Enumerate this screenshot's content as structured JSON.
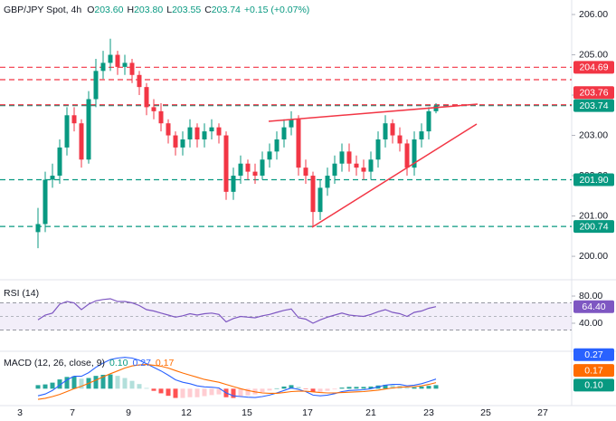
{
  "chart_data": [
    {
      "type": "candlestick",
      "title": "GBP/JPY Spot, 4h",
      "legend": [
        {
          "label": "O",
          "value": "203.60"
        },
        {
          "label": "H",
          "value": "203.80"
        },
        {
          "label": "L",
          "value": "203.55"
        },
        {
          "label": "C",
          "value": "203.74"
        }
      ],
      "change": "+0.15 (+0.07%)",
      "open": [
        200.6,
        200.8,
        201.9,
        202.0,
        202.7,
        203.5,
        203.3,
        202.4,
        203.9,
        204.6,
        204.8,
        205.0,
        204.7,
        204.8,
        204.5,
        204.2,
        203.7,
        203.6,
        203.3,
        203.0,
        202.7,
        202.9,
        203.2,
        202.9,
        203.1,
        203.2,
        203.0,
        201.6,
        202.0,
        202.3,
        202.1,
        202.0,
        202.4,
        202.6,
        202.9,
        203.2,
        203.4,
        202.2,
        202.0,
        201.1,
        201.7,
        202.0,
        202.3,
        202.6,
        202.3,
        202.2,
        202.1,
        202.4,
        202.9,
        203.3,
        203.0,
        202.8,
        202.2,
        202.9,
        203.1,
        203.6
      ],
      "high": [
        201.2,
        202.1,
        202.3,
        202.9,
        203.7,
        203.7,
        203.4,
        204.1,
        204.9,
        205.1,
        205.4,
        205.1,
        205.0,
        204.9,
        204.6,
        204.3,
        203.9,
        203.8,
        203.4,
        203.1,
        203.1,
        203.4,
        203.3,
        203.3,
        203.4,
        203.3,
        203.1,
        202.2,
        202.5,
        202.4,
        202.3,
        202.6,
        202.8,
        203.1,
        203.4,
        203.6,
        203.5,
        202.4,
        202.1,
        201.9,
        202.2,
        202.5,
        202.8,
        202.8,
        202.5,
        202.4,
        202.6,
        203.1,
        203.5,
        203.4,
        203.2,
        202.9,
        203.1,
        203.3,
        203.7,
        203.8
      ],
      "low": [
        200.2,
        200.6,
        201.7,
        201.8,
        202.5,
        203.1,
        202.2,
        202.3,
        203.7,
        204.4,
        204.6,
        204.5,
        204.5,
        204.3,
        204.0,
        203.5,
        203.4,
        203.1,
        202.8,
        202.5,
        202.5,
        202.7,
        202.7,
        202.7,
        202.9,
        202.8,
        201.4,
        201.4,
        201.8,
        201.9,
        201.8,
        201.9,
        202.2,
        202.4,
        202.7,
        203.0,
        202.0,
        201.8,
        200.74,
        200.9,
        201.5,
        201.8,
        202.1,
        202.1,
        202.0,
        201.9,
        201.9,
        202.2,
        202.7,
        202.8,
        202.6,
        202.0,
        202.0,
        202.7,
        202.9,
        203.55
      ],
      "close": [
        200.8,
        201.9,
        202.0,
        202.7,
        203.5,
        203.3,
        202.4,
        203.9,
        204.6,
        204.8,
        205.0,
        204.7,
        204.8,
        204.5,
        204.2,
        203.7,
        203.6,
        203.3,
        203.0,
        202.7,
        202.9,
        203.2,
        202.9,
        203.1,
        203.2,
        203.0,
        201.6,
        202.0,
        202.3,
        202.1,
        202.0,
        202.4,
        202.6,
        202.9,
        203.2,
        203.4,
        202.2,
        202.0,
        201.1,
        201.7,
        202.0,
        202.3,
        202.6,
        202.3,
        202.2,
        202.1,
        202.4,
        202.9,
        203.3,
        203.0,
        202.8,
        202.2,
        202.9,
        203.1,
        203.6,
        203.74
      ],
      "up_color": "#089981",
      "down_color": "#f23645",
      "ylim": [
        199.44,
        206.36
      ],
      "yticks": [
        {
          "value": 200,
          "label": "200.00"
        },
        {
          "value": 201,
          "label": "201.00"
        },
        {
          "value": 202,
          "label": "202.00"
        },
        {
          "value": 203,
          "label": "203.00"
        },
        {
          "value": 204,
          "label": "204.00"
        },
        {
          "value": 205,
          "label": "205.00"
        },
        {
          "value": 206,
          "label": "206.00"
        }
      ],
      "xlim": [
        -5.25,
        73.75
      ],
      "xticks": [
        {
          "value": -2.5,
          "label": "3"
        },
        {
          "value": 4.75,
          "label": "7"
        },
        {
          "value": 12.5,
          "label": "9"
        },
        {
          "value": 20.5,
          "label": "12"
        },
        {
          "value": 28.875,
          "label": "15"
        },
        {
          "value": 37.25,
          "label": "17"
        },
        {
          "value": 46,
          "label": "21"
        },
        {
          "value": 54,
          "label": "23"
        },
        {
          "value": 61.875,
          "label": "25"
        },
        {
          "value": 69.75,
          "label": "27"
        }
      ],
      "levels": [
        {
          "value": 203.74,
          "label": "203.74",
          "color": "#089981"
        },
        {
          "value": 203.76,
          "label": "203.76",
          "color": "#f23645"
        },
        {
          "value": 204.69,
          "label": "204.69",
          "color": "#f23645"
        },
        {
          "value": 201.9,
          "label": "201.90",
          "color": "#089981"
        },
        {
          "value": 200.74,
          "label": "200.74",
          "color": "#089981"
        }
      ]
    },
    {
      "type": "line",
      "title": "RSI (14)",
      "color": "#7e57c2",
      "values": [
        45,
        52,
        55,
        68,
        72,
        70,
        60,
        68,
        73,
        75,
        76,
        72,
        72,
        70,
        66,
        60,
        58,
        55,
        52,
        49,
        51,
        54,
        52,
        54,
        55,
        53,
        42,
        47,
        50,
        49,
        48,
        51,
        53,
        56,
        59,
        61,
        48,
        46,
        40,
        45,
        49,
        52,
        55,
        52,
        51,
        50,
        53,
        57,
        60,
        56,
        54,
        50,
        56,
        58,
        62,
        64.4
      ],
      "value_label": "64.40",
      "ylim": [
        0,
        102.7
      ],
      "yticks": [
        {
          "value": 40,
          "label": "40.00"
        },
        {
          "value": 80,
          "label": "80.00"
        }
      ],
      "band": [
        30,
        70
      ],
      "midline": 50
    },
    {
      "type": "macd",
      "title": "MACD (12, 26, close, 9)",
      "histogram": {
        "values": [
          0.1,
          0.12,
          0.17,
          0.26,
          0.33,
          0.35,
          0.28,
          0.3,
          0.36,
          0.39,
          0.4,
          0.36,
          0.3,
          0.22,
          0.13,
          0.02,
          -0.06,
          -0.13,
          -0.2,
          -0.26,
          -0.26,
          -0.24,
          -0.24,
          -0.21,
          -0.18,
          -0.16,
          -0.24,
          -0.26,
          -0.22,
          -0.19,
          -0.16,
          -0.1,
          -0.05,
          0.01,
          0.06,
          0.1,
          0.05,
          -0.01,
          -0.09,
          -0.09,
          -0.06,
          -0.02,
          0.03,
          0.05,
          0.05,
          0.05,
          0.06,
          0.09,
          0.11,
          0.1,
          0.08,
          0.03,
          0.04,
          0.06,
          0.08,
          0.1
        ],
        "value_label": "0.10",
        "color": "#089981",
        "colors": [
          "#26a69a",
          "#b2dfdb",
          "#ffcdd2",
          "#ff5252"
        ]
      },
      "macd": {
        "values": [
          -0.2,
          -0.15,
          -0.05,
          0.1,
          0.25,
          0.35,
          0.35,
          0.45,
          0.6,
          0.72,
          0.82,
          0.86,
          0.88,
          0.86,
          0.8,
          0.7,
          0.6,
          0.5,
          0.38,
          0.25,
          0.18,
          0.14,
          0.08,
          0.05,
          0.04,
          0.02,
          -0.12,
          -0.2,
          -0.22,
          -0.24,
          -0.25,
          -0.22,
          -0.18,
          -0.12,
          -0.05,
          0.02,
          -0.02,
          -0.08,
          -0.18,
          -0.2,
          -0.18,
          -0.14,
          -0.08,
          -0.05,
          -0.04,
          -0.03,
          0.0,
          0.05,
          0.1,
          0.12,
          0.12,
          0.08,
          0.1,
          0.14,
          0.2,
          0.27
        ],
        "value_label": "0.27",
        "color": "#2962ff"
      },
      "signal": {
        "values": [
          -0.3,
          -0.27,
          -0.22,
          -0.16,
          -0.08,
          0.0,
          0.07,
          0.15,
          0.24,
          0.33,
          0.42,
          0.5,
          0.58,
          0.64,
          0.67,
          0.68,
          0.66,
          0.63,
          0.58,
          0.51,
          0.44,
          0.38,
          0.32,
          0.26,
          0.22,
          0.18,
          0.12,
          0.06,
          0.0,
          -0.05,
          -0.09,
          -0.12,
          -0.13,
          -0.13,
          -0.11,
          -0.08,
          -0.07,
          -0.07,
          -0.09,
          -0.11,
          -0.12,
          -0.12,
          -0.11,
          -0.1,
          -0.09,
          -0.08,
          -0.06,
          -0.04,
          -0.01,
          0.02,
          0.04,
          0.05,
          0.06,
          0.08,
          0.12,
          0.17
        ],
        "value_label": "0.17",
        "color": "#ff6d00"
      },
      "ylim": [
        -0.45,
        1.0
      ]
    }
  ]
}
